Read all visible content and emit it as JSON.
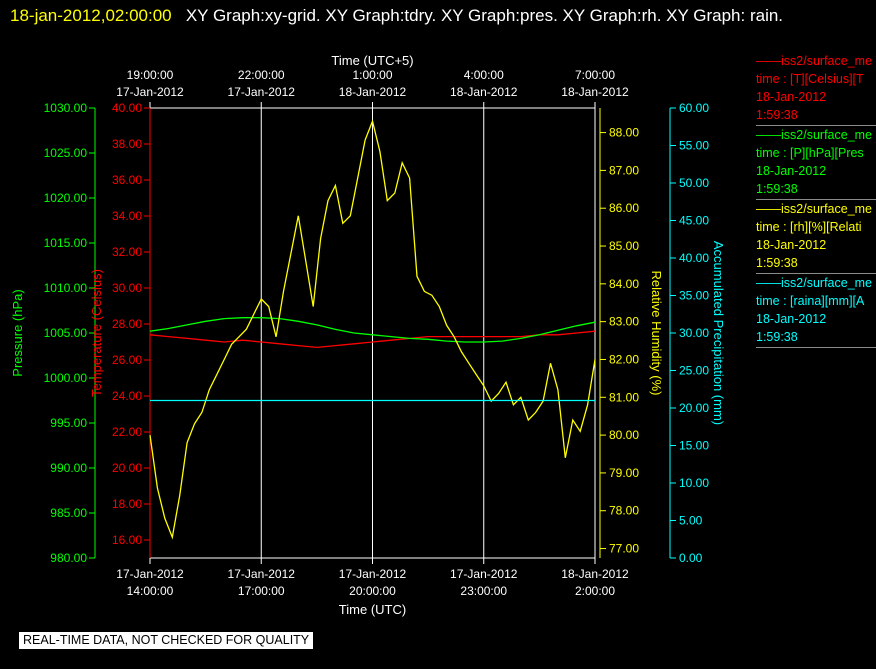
{
  "header": {
    "timestamp": "18-jan-2012,02:00:00",
    "titles": "XY Graph:xy-grid.  XY Graph:tdry.  XY Graph:pres.  XY Graph:rh.  XY Graph: rain."
  },
  "colors": {
    "temperature": "#ff0000",
    "pressure": "#00ff00",
    "humidity": "#ffff00",
    "precipitation": "#00ffff",
    "grid": "#ffffff",
    "background": "#000000"
  },
  "legend": [
    {
      "line1": "——iss2/surface_me",
      "line2": "time : [T][Celsius][T",
      "date": "18-Jan-2012",
      "time": "1:59:38",
      "color": "#ff0000"
    },
    {
      "line1": "——iss2/surface_me",
      "line2": "time : [P][hPa][Pres",
      "date": "18-Jan-2012",
      "time": "1:59:38",
      "color": "#00ff00"
    },
    {
      "line1": "——iss2/surface_me",
      "line2": "time : [rh][%][Relati",
      "date": "18-Jan-2012",
      "time": "1:59:38",
      "color": "#ffff00"
    },
    {
      "line1": "——iss2/surface_me",
      "line2": "time : [raina][mm][A",
      "date": "18-Jan-2012",
      "time": "1:59:38",
      "color": "#00ffff"
    }
  ],
  "disclaimer": "REAL-TIME DATA, NOT CHECKED FOR QUALITY",
  "chart_data": {
    "type": "line",
    "title": "",
    "xlabel_bottom": "Time (UTC)",
    "xlabel_top": "Time (UTC+5)",
    "xrange_hours": [
      0,
      12
    ],
    "x_ticks_bottom": [
      {
        "time": "14:00:00",
        "date": "17-Jan-2012"
      },
      {
        "time": "17:00:00",
        "date": "17-Jan-2012"
      },
      {
        "time": "20:00:00",
        "date": "17-Jan-2012"
      },
      {
        "time": "23:00:00",
        "date": "17-Jan-2012"
      },
      {
        "time": "2:00:00",
        "date": "18-Jan-2012"
      }
    ],
    "x_ticks_top": [
      {
        "time": "19:00:00",
        "date": "17-Jan-2012"
      },
      {
        "time": "22:00:00",
        "date": "17-Jan-2012"
      },
      {
        "time": "1:00:00",
        "date": "18-Jan-2012"
      },
      {
        "time": "4:00:00",
        "date": "18-Jan-2012"
      },
      {
        "time": "7:00:00",
        "date": "18-Jan-2012"
      }
    ],
    "axes": {
      "pressure": {
        "label": "Pressure (hPa)",
        "range": [
          980,
          1030
        ],
        "ticks": [
          "980.00",
          "985.00",
          "990.00",
          "995.00",
          "1000.00",
          "1005.00",
          "1010.00",
          "1015.00",
          "1020.00",
          "1025.00",
          "1030.00"
        ]
      },
      "temperature": {
        "label": "Temperature (Celsius)",
        "range": [
          15,
          40
        ],
        "ticks": [
          "16.00",
          "18.00",
          "20.00",
          "22.00",
          "24.00",
          "26.00",
          "28.00",
          "30.00",
          "32.00",
          "34.00",
          "36.00",
          "38.00",
          "40.00"
        ]
      },
      "humidity": {
        "label": "Relative Humidity (%)",
        "range": [
          76.75,
          88.65
        ],
        "ticks": [
          "77.00",
          "78.00",
          "79.00",
          "80.00",
          "81.00",
          "82.00",
          "83.00",
          "84.00",
          "85.00",
          "86.00",
          "87.00",
          "88.00"
        ]
      },
      "precipitation": {
        "label": "Accumulated Precipitation (mm)",
        "range": [
          0,
          60
        ],
        "ticks": [
          "0.00",
          "5.00",
          "10.00",
          "15.00",
          "20.00",
          "25.00",
          "30.00",
          "35.00",
          "40.00",
          "45.00",
          "50.00",
          "55.00",
          "60.00"
        ]
      }
    },
    "series": [
      {
        "axis": "temperature",
        "color": "#ff0000",
        "x": [
          0,
          0.5,
          1,
          1.5,
          2,
          2.5,
          3,
          3.5,
          4,
          4.5,
          5,
          5.5,
          6,
          6.5,
          7,
          7.5,
          8,
          8.5,
          9,
          9.5,
          10,
          10.5,
          11,
          11.5,
          12
        ],
        "y": [
          27.4,
          27.3,
          27.2,
          27.1,
          27.0,
          27.1,
          27.0,
          26.9,
          26.8,
          26.7,
          26.8,
          26.9,
          27.0,
          27.1,
          27.2,
          27.3,
          27.3,
          27.3,
          27.3,
          27.3,
          27.3,
          27.4,
          27.4,
          27.5,
          27.6
        ]
      },
      {
        "axis": "pressure",
        "color": "#00ff00",
        "x": [
          0,
          0.5,
          1,
          1.5,
          2,
          2.5,
          3,
          3.5,
          4,
          4.5,
          5,
          5.5,
          6,
          6.5,
          7,
          7.5,
          8,
          8.5,
          9,
          9.5,
          10,
          10.5,
          11,
          11.5,
          12
        ],
        "y": [
          1005.2,
          1005.5,
          1005.9,
          1006.3,
          1006.6,
          1006.7,
          1006.7,
          1006.6,
          1006.3,
          1005.9,
          1005.4,
          1005.0,
          1004.8,
          1004.6,
          1004.4,
          1004.3,
          1004.1,
          1004.0,
          1004.0,
          1004.1,
          1004.4,
          1004.8,
          1005.3,
          1005.8,
          1006.2
        ]
      },
      {
        "axis": "humidity",
        "color": "#ffff00",
        "x": [
          0,
          0.2,
          0.4,
          0.6,
          0.8,
          1.0,
          1.2,
          1.4,
          1.6,
          1.8,
          2.0,
          2.2,
          2.4,
          2.6,
          2.8,
          3.0,
          3.2,
          3.4,
          3.6,
          3.8,
          4.0,
          4.2,
          4.4,
          4.6,
          4.8,
          5.0,
          5.2,
          5.4,
          5.6,
          5.8,
          6.0,
          6.2,
          6.4,
          6.6,
          6.8,
          7.0,
          7.2,
          7.4,
          7.6,
          7.8,
          8.0,
          8.2,
          8.4,
          8.6,
          8.8,
          9.0,
          9.2,
          9.4,
          9.6,
          9.8,
          10.0,
          10.2,
          10.4,
          10.6,
          10.8,
          11.0,
          11.2,
          11.4,
          11.6,
          11.8,
          12.0
        ],
        "y": [
          80.0,
          78.6,
          77.8,
          77.3,
          78.4,
          79.8,
          80.3,
          80.6,
          81.2,
          81.6,
          82.0,
          82.4,
          82.6,
          82.8,
          83.2,
          83.6,
          83.4,
          82.6,
          83.8,
          84.8,
          85.8,
          84.6,
          83.4,
          85.2,
          86.2,
          86.6,
          85.6,
          85.8,
          86.8,
          87.8,
          88.3,
          87.5,
          86.2,
          86.4,
          87.2,
          86.8,
          84.2,
          83.8,
          83.7,
          83.4,
          82.9,
          82.6,
          82.2,
          81.9,
          81.6,
          81.3,
          80.9,
          81.1,
          81.4,
          80.8,
          81.0,
          80.4,
          80.6,
          80.9,
          81.9,
          81.2,
          79.4,
          80.4,
          80.1,
          80.8,
          82.0
        ]
      },
      {
        "axis": "precipitation",
        "color": "#00ffff",
        "x": [
          0,
          12
        ],
        "y": [
          21.0,
          21.0
        ]
      }
    ]
  }
}
